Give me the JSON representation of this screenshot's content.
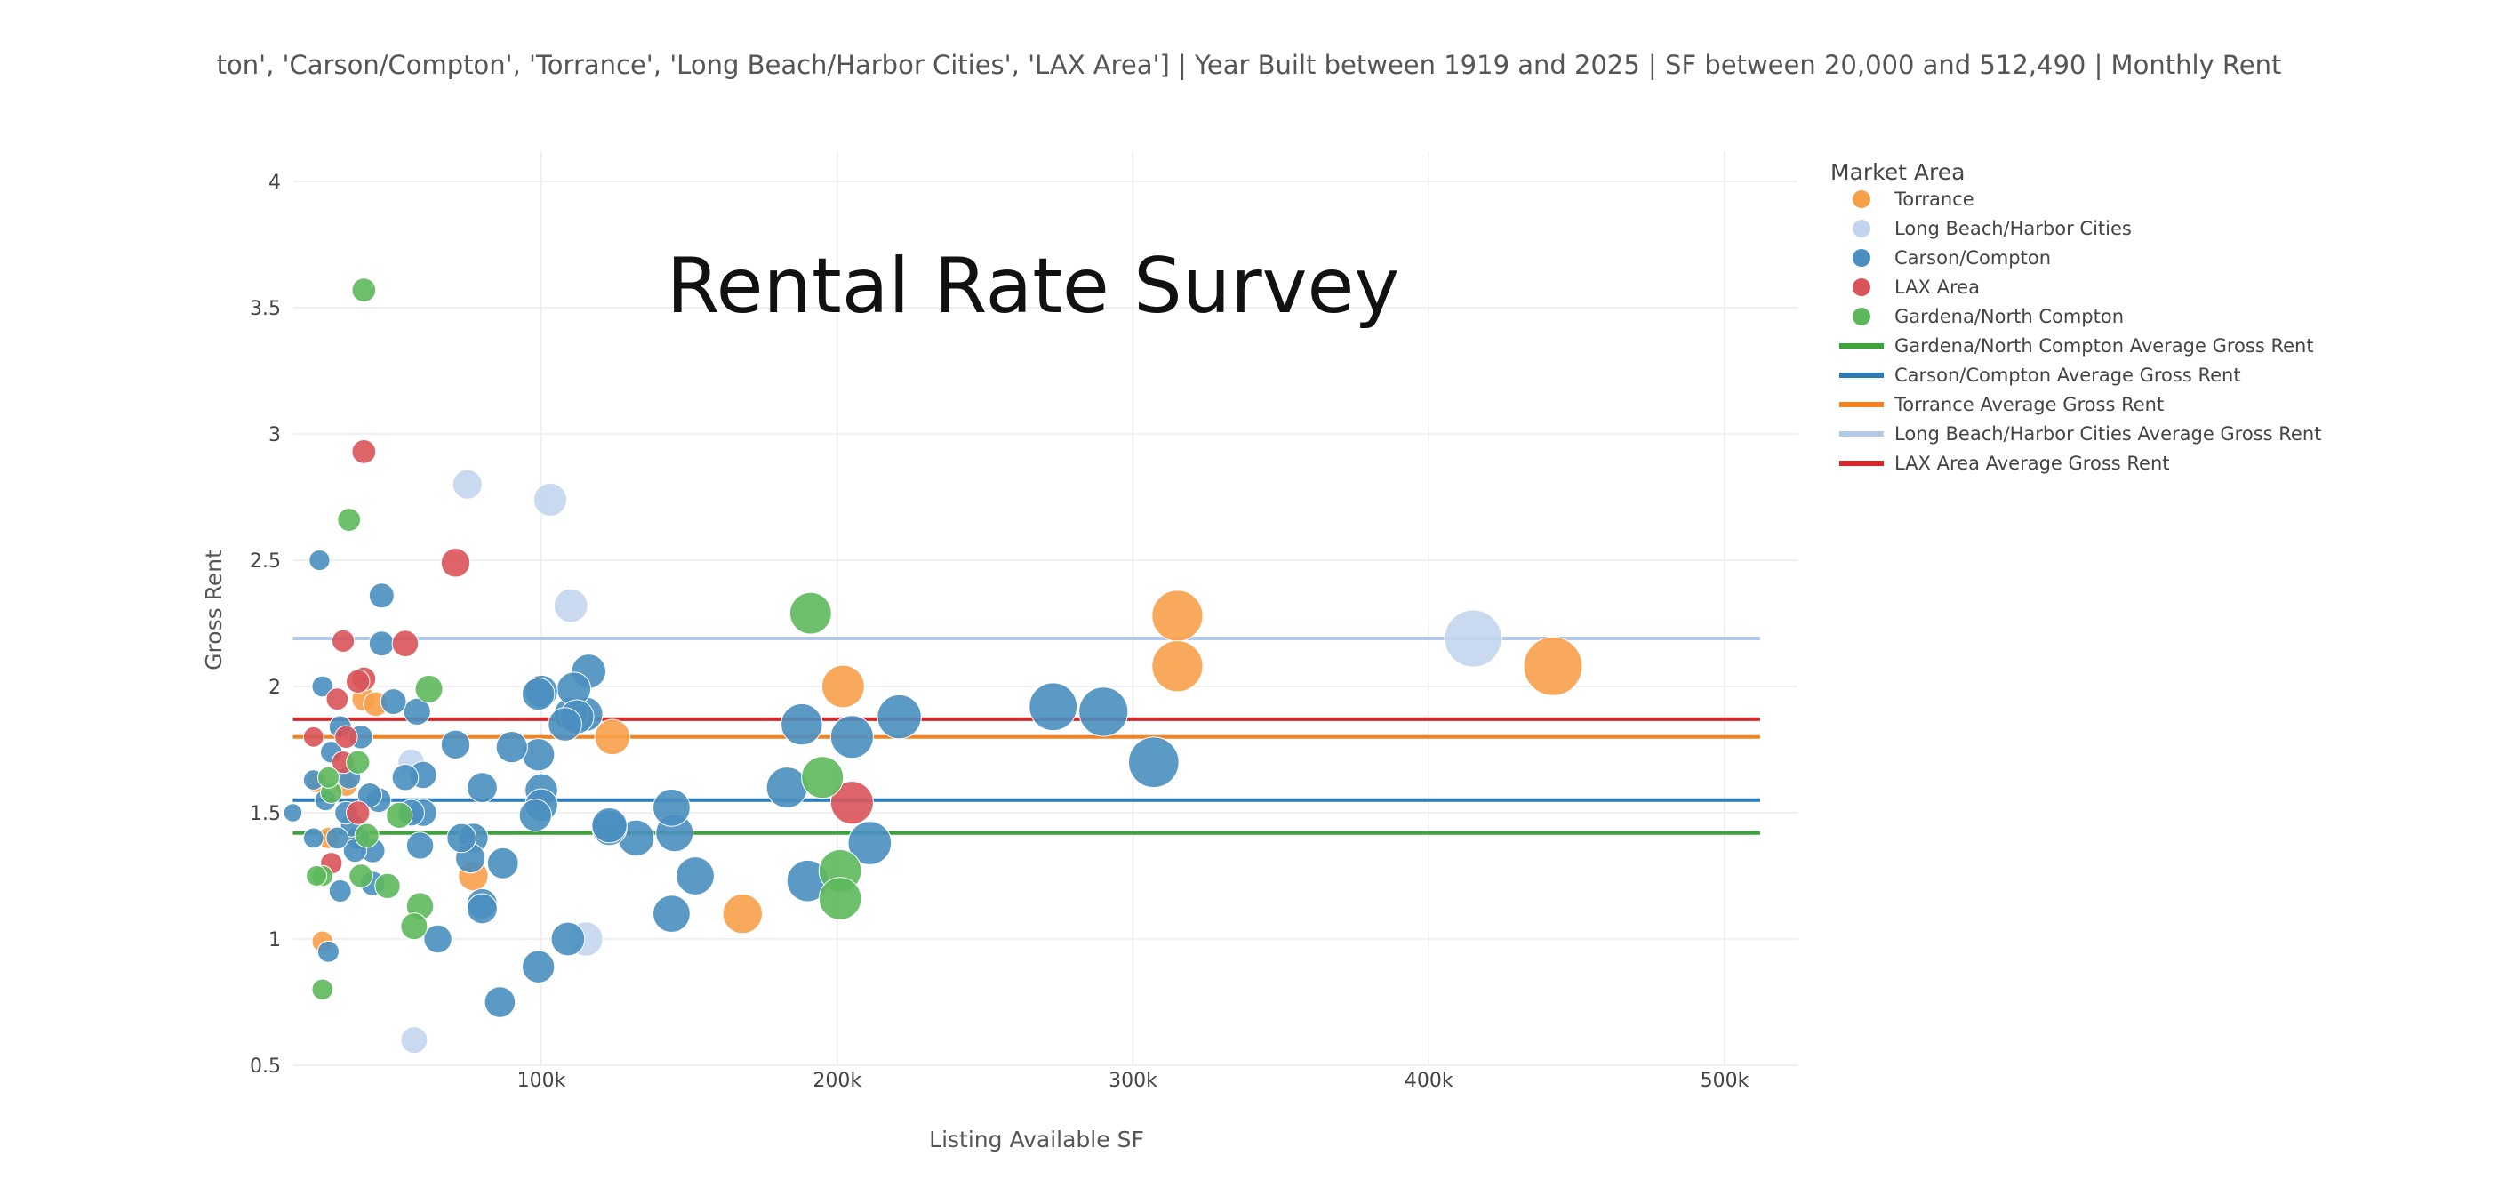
{
  "filter_caption": "ton', 'Carson/Compton', 'Torrance', 'Long Beach/Harbor Cities', 'LAX Area']  | Year Built between 1919 and 2025  |  SF between 20,000 and 512,490  |  Monthly Rent",
  "chart_data": {
    "type": "scatter",
    "title": "Rental Rate Survey",
    "xlabel": "Listing Available SF",
    "ylabel": "Gross Rent",
    "xlim": [
      10000,
      530000
    ],
    "ylim": [
      0.5,
      4.1
    ],
    "x_ticks": [
      100000,
      200000,
      300000,
      400000,
      500000
    ],
    "x_tick_labels": [
      "100k",
      "200k",
      "300k",
      "400k",
      "500k"
    ],
    "y_ticks": [
      0.5,
      1,
      1.5,
      2,
      2.5,
      3,
      3.5,
      4
    ],
    "y_tick_labels": [
      "0.5",
      "1",
      "1.5",
      "2",
      "2.5",
      "3",
      "3.5",
      "4"
    ],
    "grid": true,
    "legend_title": "Market Area",
    "legend_position": "right",
    "colors": {
      "Torrance": "#f7a04a",
      "Long Beach/Harbor Cities": "#c3d5ee",
      "Carson/Compton": "#4a8fc0",
      "LAX Area": "#d95459",
      "Gardena/North Compton": "#5db85c"
    },
    "series": [
      {
        "name": "Torrance",
        "marker": "circle",
        "color": "#f7a04a",
        "points": [
          [
            315000,
            2.28
          ],
          [
            315000,
            2.08
          ],
          [
            442000,
            2.08
          ],
          [
            168000,
            1.1
          ],
          [
            202000,
            2.0
          ],
          [
            124000,
            1.8
          ],
          [
            77000,
            1.25
          ],
          [
            24000,
            1.62
          ],
          [
            26000,
            0.99
          ],
          [
            28000,
            1.4
          ],
          [
            40000,
            1.95
          ],
          [
            44000,
            1.93
          ],
          [
            34000,
            1.61
          ]
        ]
      },
      {
        "name": "Long Beach/Harbor Cities",
        "marker": "circle",
        "color": "#c3d5ee",
        "points": [
          [
            415000,
            2.19
          ],
          [
            110000,
            2.32
          ],
          [
            103000,
            2.74
          ],
          [
            75000,
            2.8
          ],
          [
            115000,
            1.0
          ],
          [
            57000,
            0.6
          ],
          [
            56000,
            1.7
          ]
        ]
      },
      {
        "name": "Carson/Compton",
        "marker": "circle",
        "color": "#4a8fc0",
        "points": [
          [
            145000,
            1.42
          ],
          [
            144000,
            1.1
          ],
          [
            183000,
            1.6
          ],
          [
            188000,
            1.85
          ],
          [
            205000,
            1.8
          ],
          [
            221000,
            1.88
          ],
          [
            211000,
            1.38
          ],
          [
            273000,
            1.92
          ],
          [
            290000,
            1.9
          ],
          [
            307000,
            1.7
          ],
          [
            152000,
            1.25
          ],
          [
            190000,
            1.23
          ],
          [
            144000,
            1.52
          ],
          [
            132000,
            1.4
          ],
          [
            123000,
            1.44
          ],
          [
            123000,
            1.45
          ],
          [
            116000,
            2.06
          ],
          [
            115000,
            1.89
          ],
          [
            110000,
            1.89
          ],
          [
            111000,
            1.99
          ],
          [
            112000,
            1.88
          ],
          [
            108000,
            1.85
          ],
          [
            100000,
            1.98
          ],
          [
            99000,
            1.97
          ],
          [
            100000,
            1.59
          ],
          [
            99000,
            1.73
          ],
          [
            100000,
            1.53
          ],
          [
            98000,
            1.49
          ],
          [
            90000,
            1.76
          ],
          [
            87000,
            1.3
          ],
          [
            80000,
            1.6
          ],
          [
            80000,
            1.14
          ],
          [
            80000,
            1.12
          ],
          [
            77000,
            1.4
          ],
          [
            76000,
            1.32
          ],
          [
            73000,
            1.4
          ],
          [
            71000,
            1.77
          ],
          [
            65000,
            1.0
          ],
          [
            60000,
            1.65
          ],
          [
            60000,
            1.5
          ],
          [
            59000,
            1.37
          ],
          [
            58000,
            1.9
          ],
          [
            56000,
            1.5
          ],
          [
            54000,
            1.64
          ],
          [
            50000,
            1.94
          ],
          [
            46000,
            2.36
          ],
          [
            46000,
            2.17
          ],
          [
            45000,
            1.55
          ],
          [
            43000,
            1.35
          ],
          [
            42000,
            1.57
          ],
          [
            39000,
            1.8
          ],
          [
            38000,
            1.4
          ],
          [
            37000,
            1.35
          ],
          [
            36000,
            1.45
          ],
          [
            35000,
            1.64
          ],
          [
            34000,
            1.5
          ],
          [
            32000,
            1.84
          ],
          [
            31000,
            1.4
          ],
          [
            29000,
            1.74
          ],
          [
            27000,
            1.55
          ],
          [
            26000,
            2.0
          ],
          [
            25000,
            2.5
          ],
          [
            23000,
            1.4
          ],
          [
            23000,
            1.63
          ],
          [
            99000,
            0.89
          ],
          [
            86000,
            0.75
          ],
          [
            109000,
            1.0
          ],
          [
            32000,
            1.19
          ],
          [
            43000,
            1.22
          ],
          [
            28000,
            0.95
          ],
          [
            16000,
            1.5
          ]
        ]
      },
      {
        "name": "LAX Area",
        "marker": "circle",
        "color": "#d95459",
        "points": [
          [
            205000,
            1.54
          ],
          [
            71000,
            2.49
          ],
          [
            40000,
            2.93
          ],
          [
            54000,
            2.17
          ],
          [
            33000,
            2.18
          ],
          [
            40000,
            2.03
          ],
          [
            38000,
            2.02
          ],
          [
            31000,
            1.95
          ],
          [
            34000,
            1.8
          ],
          [
            33000,
            1.7
          ],
          [
            38000,
            1.5
          ],
          [
            29000,
            1.3
          ],
          [
            23000,
            1.8
          ]
        ]
      },
      {
        "name": "Gardena/North Compton",
        "marker": "circle",
        "color": "#5db85c",
        "points": [
          [
            191000,
            2.29
          ],
          [
            195000,
            1.64
          ],
          [
            201000,
            1.27
          ],
          [
            201000,
            1.16
          ],
          [
            62000,
            1.99
          ],
          [
            59000,
            1.13
          ],
          [
            57000,
            1.05
          ],
          [
            48000,
            1.21
          ],
          [
            52000,
            1.49
          ],
          [
            40000,
            3.57
          ],
          [
            35000,
            2.66
          ],
          [
            38000,
            1.7
          ],
          [
            39000,
            1.25
          ],
          [
            41000,
            1.41
          ],
          [
            29000,
            1.58
          ],
          [
            28000,
            1.64
          ],
          [
            26000,
            1.25
          ],
          [
            24000,
            1.25
          ],
          [
            26000,
            0.8
          ]
        ]
      }
    ],
    "average_lines": [
      {
        "name": "Gardena/North Compton Average Gross Rent",
        "y": 1.42,
        "x_range": [
          16000,
          512000
        ],
        "color": "#3aa33a"
      },
      {
        "name": "Carson/Compton Average Gross Rent",
        "y": 1.55,
        "x_range": [
          16000,
          512000
        ],
        "color": "#2c7bb6"
      },
      {
        "name": "Torrance Average Gross Rent",
        "y": 1.8,
        "x_range": [
          16000,
          512000
        ],
        "color": "#f58220"
      },
      {
        "name": "Long Beach/Harbor Cities Average Gross Rent",
        "y": 2.19,
        "x_range": [
          16000,
          512000
        ],
        "color": "#b3c9e8"
      },
      {
        "name": "LAX Area Average Gross Rent",
        "y": 1.87,
        "x_range": [
          16000,
          512000
        ],
        "color": "#d62728"
      }
    ]
  }
}
